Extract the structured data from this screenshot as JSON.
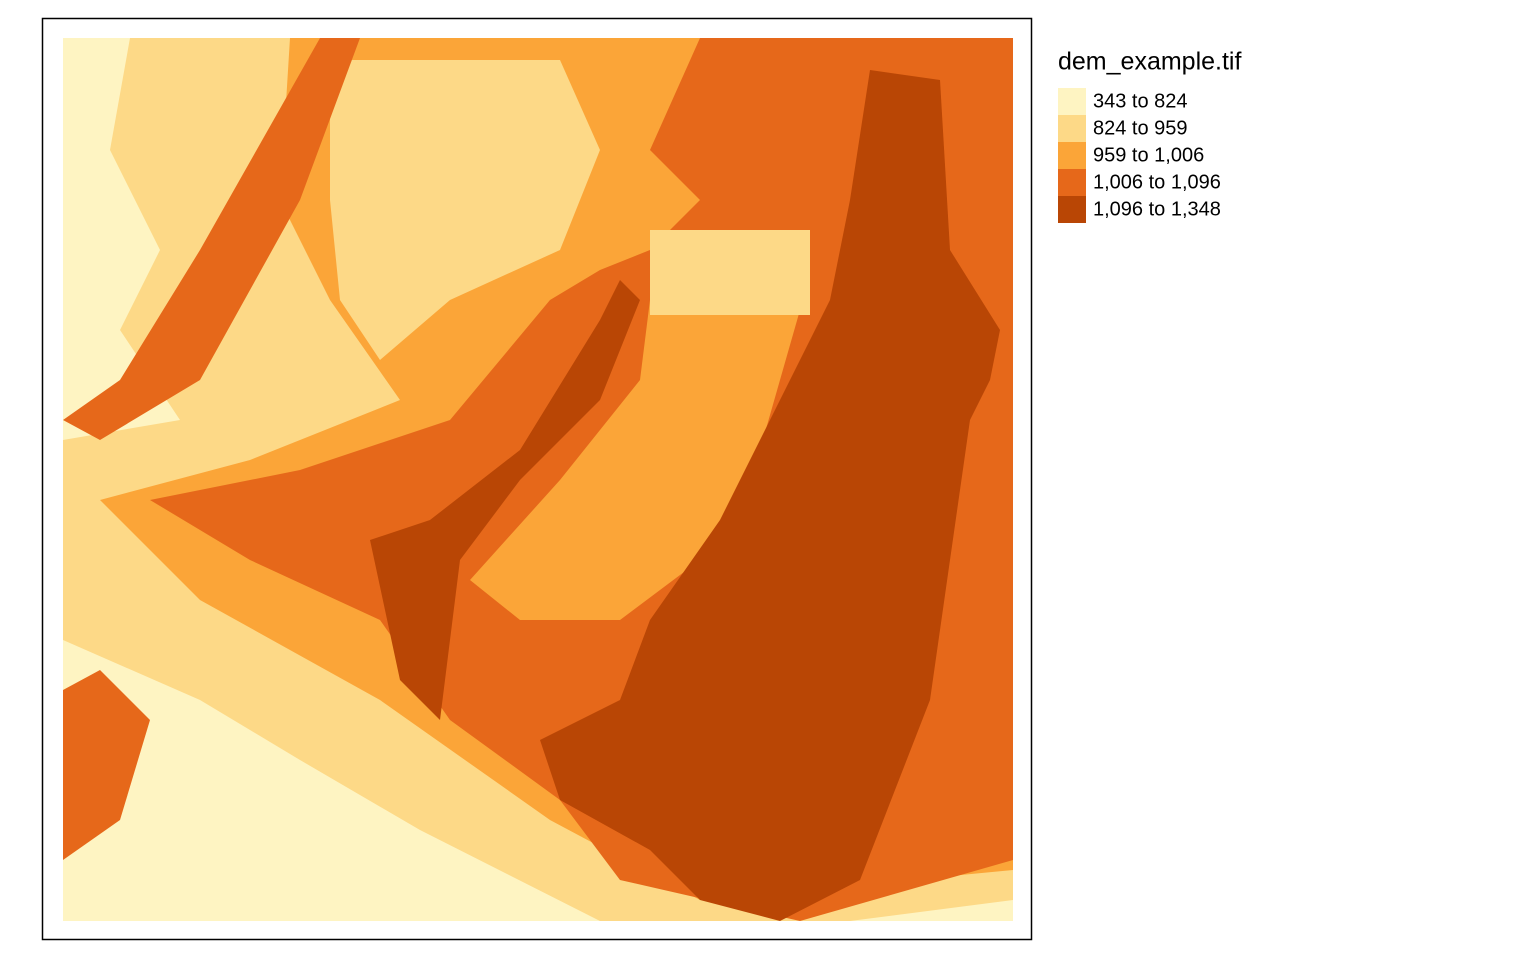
{
  "legend": {
    "title": "dem_example.tif",
    "items": [
      {
        "label": "343 to 824",
        "color": "#fef4c2"
      },
      {
        "label": "824 to 959",
        "color": "#fdd987"
      },
      {
        "label": "959 to 1,006",
        "color": "#fba538"
      },
      {
        "label": "1,006 to 1,096",
        "color": "#e6681a"
      },
      {
        "label": "1,096 to 1,348",
        "color": "#b94605"
      }
    ]
  }
}
